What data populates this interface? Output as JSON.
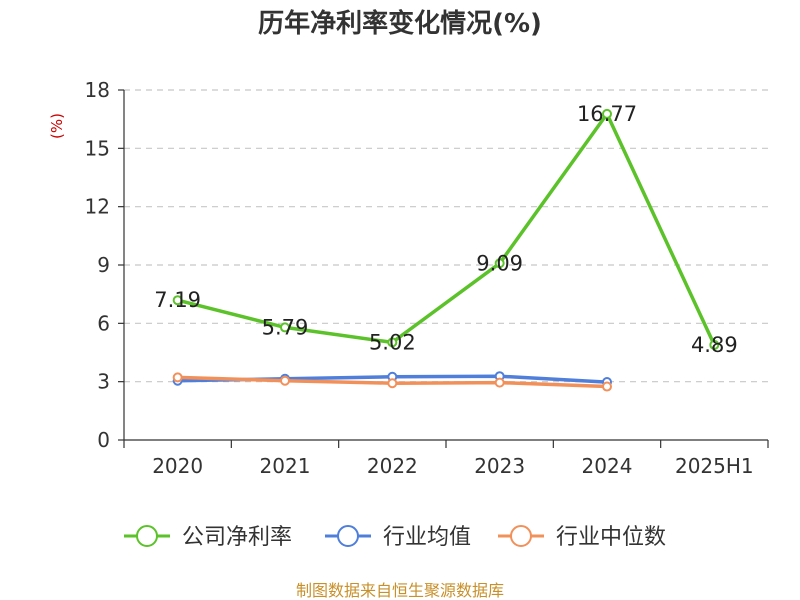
{
  "chart_data": {
    "type": "line",
    "title": "历年净利率变化情况(%)",
    "ylabel": "(%)",
    "xlabel": "",
    "categories": [
      "2020",
      "2021",
      "2022",
      "2023",
      "2024",
      "2025H1"
    ],
    "ylim": [
      0,
      18
    ],
    "yticks": [
      0,
      3,
      6,
      9,
      12,
      15,
      18
    ],
    "grid": true,
    "legend_position": "bottom",
    "series": [
      {
        "name": "公司净利率",
        "color": "#5cc22a",
        "values": [
          7.19,
          5.79,
          5.02,
          9.09,
          16.77,
          4.89
        ],
        "labels": [
          "7.19",
          "5.79",
          "5.02",
          "9.09",
          "16.77",
          "4.89"
        ]
      },
      {
        "name": "行业均值",
        "color": "#4f7fdb",
        "values": [
          3.05,
          3.15,
          3.25,
          3.28,
          2.98,
          null
        ]
      },
      {
        "name": "行业中位数",
        "color": "#f2905a",
        "values": [
          3.22,
          3.05,
          2.92,
          2.95,
          2.75,
          null
        ]
      }
    ]
  },
  "footer": {
    "source": "制图数据来自恒生聚源数据库"
  }
}
